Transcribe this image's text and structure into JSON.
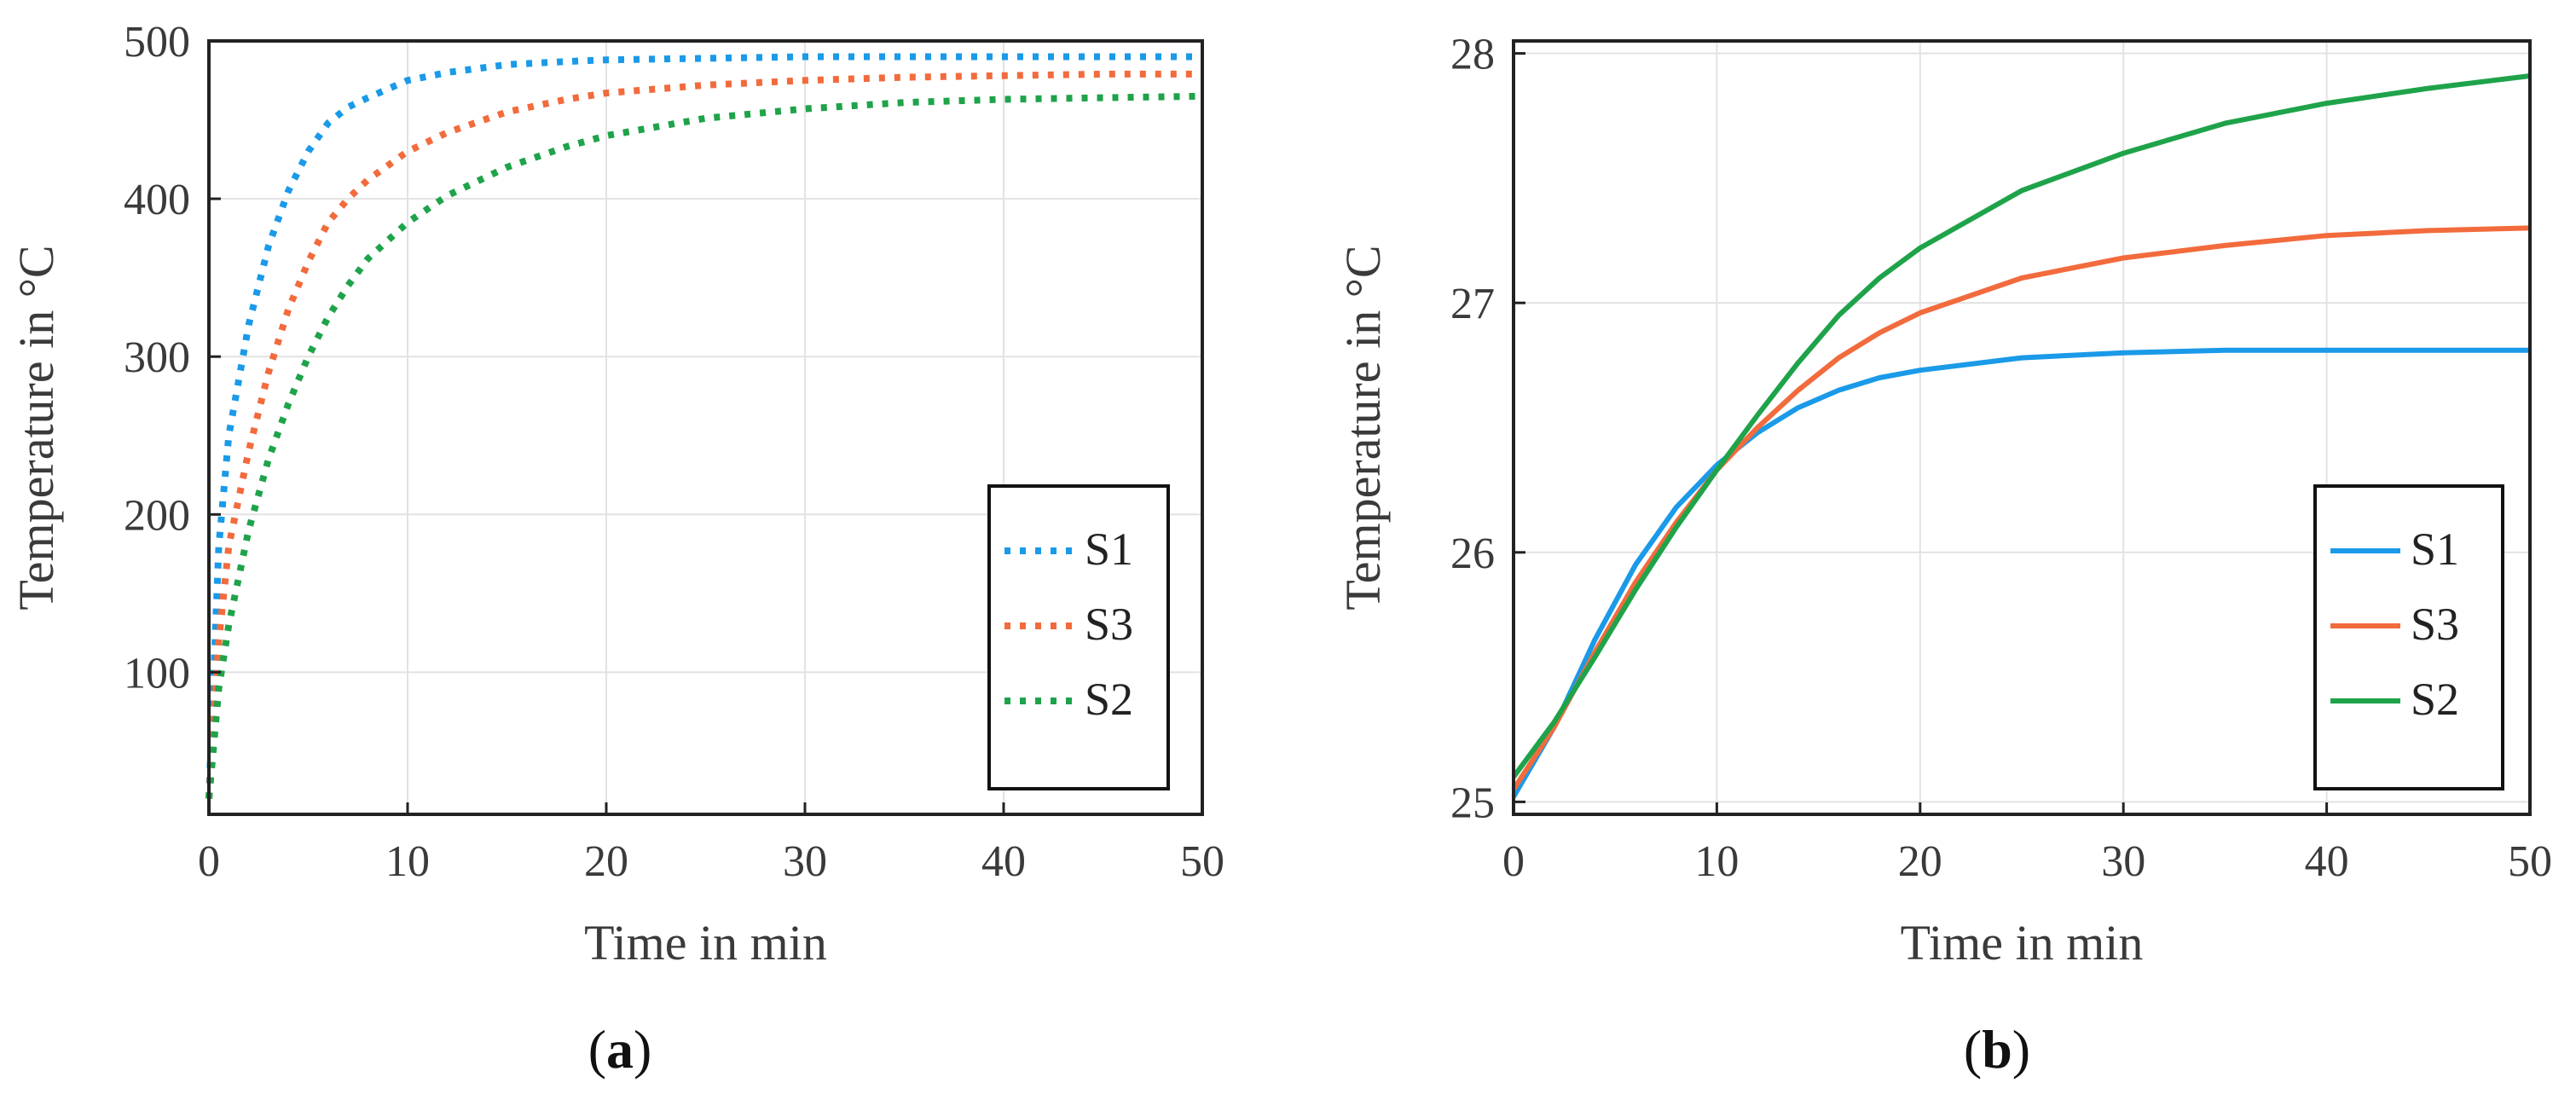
{
  "chart_data": [
    {
      "panel": "a",
      "type": "line",
      "line_style": "dotted",
      "xlabel": "Time in min",
      "ylabel": "Temperature in °C",
      "xlim": [
        0,
        50
      ],
      "ylim": [
        10,
        500
      ],
      "xticks": [
        0,
        10,
        20,
        30,
        40,
        50
      ],
      "yticks": [
        100,
        200,
        300,
        400,
        500
      ],
      "grid": true,
      "legend_position": "lower-right",
      "caption": {
        "open": "(",
        "letter": "a",
        "close": ")"
      },
      "series": [
        {
          "name": "S1",
          "color": "#1a9ae8",
          "x": [
            0,
            0.5,
            1,
            2,
            3,
            4,
            5,
            6,
            7,
            8,
            10,
            12,
            15,
            18,
            20,
            25,
            30,
            35,
            40,
            45,
            50
          ],
          "y": [
            20,
            180,
            250,
            320,
            370,
            405,
            430,
            448,
            458,
            464,
            475,
            480,
            485,
            487,
            488,
            489,
            490,
            490,
            490,
            490,
            490
          ]
        },
        {
          "name": "S3",
          "color": "#f26b3d",
          "x": [
            0,
            0.5,
            1,
            2,
            3,
            4,
            5,
            6,
            7,
            8,
            10,
            12,
            15,
            18,
            20,
            25,
            30,
            35,
            40,
            45,
            50
          ],
          "y": [
            20,
            120,
            180,
            240,
            290,
            330,
            360,
            385,
            400,
            412,
            430,
            442,
            455,
            463,
            467,
            472,
            475,
            477,
            478,
            479,
            479
          ]
        },
        {
          "name": "S2",
          "color": "#1fa34a",
          "x": [
            0,
            0.5,
            1,
            2,
            3,
            4,
            5,
            6,
            7,
            8,
            10,
            12,
            15,
            18,
            20,
            25,
            30,
            35,
            40,
            45,
            50
          ],
          "y": [
            20,
            90,
            130,
            190,
            235,
            270,
            300,
            325,
            345,
            362,
            385,
            402,
            420,
            433,
            440,
            451,
            457,
            461,
            463,
            464,
            465
          ]
        }
      ]
    },
    {
      "panel": "b",
      "type": "line",
      "line_style": "solid",
      "xlabel": "Time in min",
      "ylabel": "Temperature in °C",
      "xlim": [
        0,
        50
      ],
      "ylim": [
        24.95,
        28.05
      ],
      "xticks": [
        0,
        10,
        20,
        30,
        40,
        50
      ],
      "yticks": [
        25,
        26,
        27,
        28
      ],
      "grid": true,
      "legend_position": "lower-right",
      "caption": {
        "open": "(",
        "letter": "b",
        "close": ")"
      },
      "series": [
        {
          "name": "S1",
          "color": "#1a9ae8",
          "x": [
            0,
            2,
            4,
            6,
            8,
            10,
            12,
            14,
            16,
            18,
            20,
            25,
            30,
            35,
            40,
            45,
            50
          ],
          "y": [
            25.02,
            25.3,
            25.65,
            25.95,
            26.18,
            26.35,
            26.48,
            26.58,
            26.65,
            26.7,
            26.73,
            26.78,
            26.8,
            26.81,
            26.81,
            26.81,
            26.81
          ]
        },
        {
          "name": "S3",
          "color": "#f26b3d",
          "x": [
            0,
            2,
            4,
            6,
            8,
            10,
            12,
            14,
            16,
            18,
            20,
            25,
            30,
            35,
            40,
            45,
            50
          ],
          "y": [
            25.05,
            25.3,
            25.6,
            25.88,
            26.12,
            26.33,
            26.5,
            26.65,
            26.78,
            26.88,
            26.96,
            27.1,
            27.18,
            27.23,
            27.27,
            27.29,
            27.3
          ]
        },
        {
          "name": "S2",
          "color": "#1fa34a",
          "x": [
            0,
            2,
            4,
            6,
            8,
            10,
            12,
            14,
            16,
            18,
            20,
            25,
            30,
            35,
            40,
            45,
            50
          ],
          "y": [
            25.1,
            25.32,
            25.58,
            25.85,
            26.1,
            26.33,
            26.55,
            26.76,
            26.95,
            27.1,
            27.22,
            27.45,
            27.6,
            27.72,
            27.8,
            27.86,
            27.91
          ]
        }
      ]
    }
  ]
}
